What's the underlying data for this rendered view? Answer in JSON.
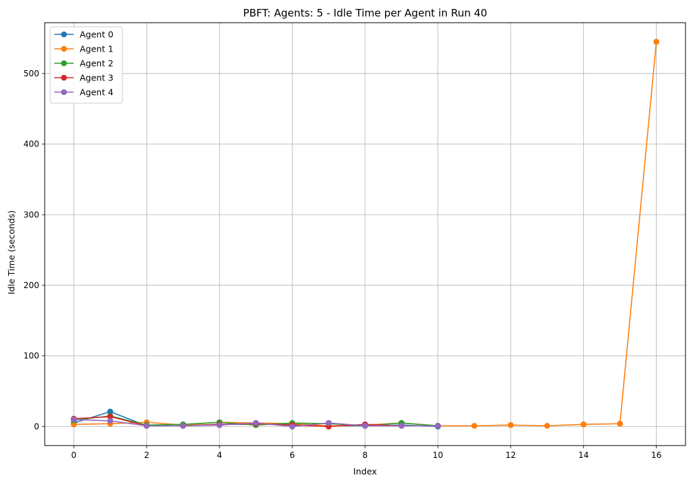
{
  "chart_data": {
    "type": "line",
    "title": "PBFT: Agents: 5 - Idle Time per Agent in Run 40",
    "xlabel": "Index",
    "ylabel": "Idle Time (seconds)",
    "xlim": [
      -0.8,
      16.8
    ],
    "ylim": [
      -27,
      572
    ],
    "xticks": [
      0,
      2,
      4,
      6,
      8,
      10,
      12,
      14,
      16
    ],
    "yticks": [
      0,
      100,
      200,
      300,
      400,
      500
    ],
    "grid": true,
    "legend_position": "top-left",
    "series": [
      {
        "name": "Agent 0",
        "color": "#1f77b4",
        "x": [
          0,
          1,
          2,
          3,
          4,
          5,
          6,
          7,
          8,
          9,
          10
        ],
        "values": [
          5,
          21,
          1,
          1,
          3,
          3,
          3,
          1,
          1,
          2,
          0
        ]
      },
      {
        "name": "Agent 1",
        "color": "#ff7f0e",
        "x": [
          0,
          1,
          2,
          3,
          4,
          5,
          6,
          7,
          8,
          9,
          10,
          11,
          12,
          13,
          14,
          15,
          16
        ],
        "values": [
          3,
          4,
          6,
          2,
          6,
          5,
          4,
          1,
          2,
          5,
          1,
          1,
          2,
          1,
          3,
          4,
          545
        ]
      },
      {
        "name": "Agent 2",
        "color": "#2ca02c",
        "x": [
          0,
          1,
          2,
          3,
          4,
          5,
          6,
          7,
          8,
          9,
          10
        ],
        "values": [
          9,
          15,
          2,
          3,
          6,
          2,
          5,
          4,
          1,
          5,
          1
        ]
      },
      {
        "name": "Agent 3",
        "color": "#d62728",
        "x": [
          0,
          1,
          2,
          3,
          4,
          5,
          6,
          7,
          8,
          9,
          10
        ],
        "values": [
          11,
          14,
          1,
          1,
          3,
          4,
          2,
          0,
          3,
          1,
          1
        ]
      },
      {
        "name": "Agent 4",
        "color": "#9467bd",
        "x": [
          0,
          1,
          2,
          3,
          4,
          5,
          6,
          7,
          8,
          9,
          10
        ],
        "values": [
          10,
          8,
          1,
          1,
          2,
          5,
          0,
          5,
          1,
          1,
          1
        ]
      }
    ]
  }
}
